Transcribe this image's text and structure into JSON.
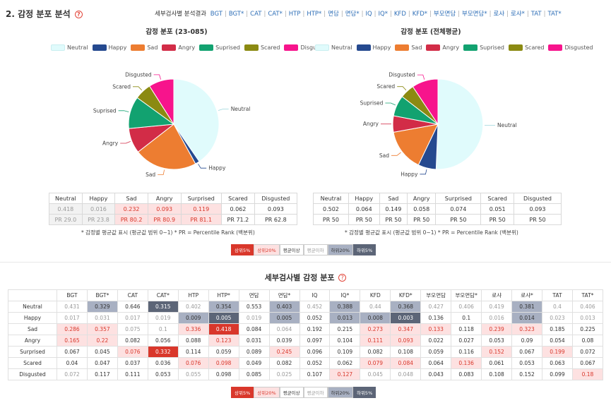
{
  "header": {
    "section_title": "2. 감정 분포 분석",
    "help_glyph": "?",
    "nav_lead": "세부검사별 분석결과",
    "nav_links": [
      "BGT",
      "BGT*",
      "CAT",
      "CAT*",
      "HTP",
      "HTP*",
      "면담",
      "면담*",
      "IQ",
      "IQ*",
      "KFD",
      "KFD*",
      "부모면담",
      "부모면담*",
      "로샤",
      "로샤*",
      "TAT",
      "TAT*"
    ]
  },
  "colors": {
    "Neutral": "#e0fbfc",
    "Happy": "#25498f",
    "Sad": "#ed7d31",
    "Angry": "#d22c47",
    "Suprised": "#12a270",
    "Scared": "#8b8a12",
    "Disgusted": "#f7148c"
  },
  "legend_items": [
    "Neutral",
    "Happy",
    "Sad",
    "Angry",
    "Suprised",
    "Scared",
    "Disgusted"
  ],
  "chart_data": [
    {
      "type": "pie",
      "title": "감정 분포 (23-085)",
      "categories": [
        "Neutral",
        "Happy",
        "Sad",
        "Angry",
        "Suprised",
        "Scared",
        "Disgusted"
      ],
      "values": [
        0.418,
        0.016,
        0.232,
        0.093,
        0.119,
        0.062,
        0.093
      ],
      "legend": "top"
    },
    {
      "type": "pie",
      "title": "감정 분포 (전체평균)",
      "categories": [
        "Neutral",
        "Happy",
        "Sad",
        "Angry",
        "Suprised",
        "Scared",
        "Disgusted"
      ],
      "values": [
        0.502,
        0.064,
        0.149,
        0.058,
        0.074,
        0.051,
        0.093
      ],
      "legend": "top"
    }
  ],
  "left_table": {
    "headers": [
      "Neutral",
      "Happy",
      "Sad",
      "Angry",
      "Surprised",
      "Scared",
      "Disgusted"
    ],
    "values": [
      "0.418",
      "0.016",
      "0.232",
      "0.093",
      "0.119",
      "0.062",
      "0.093"
    ],
    "pr": [
      "PR 29.0",
      "PR 23.8",
      "PR 80.2",
      "PR 80.9",
      "PR 81.1",
      "PR 71.2",
      "PR 62.8"
    ],
    "levels": [
      "low",
      "low",
      "top20",
      "top20",
      "top20",
      "avg",
      "avg"
    ]
  },
  "right_table": {
    "headers": [
      "Neutral",
      "Happy",
      "Sad",
      "Angry",
      "Surprised",
      "Scared",
      "Disgusted"
    ],
    "values": [
      "0.502",
      "0.064",
      "0.149",
      "0.058",
      "0.074",
      "0.051",
      "0.093"
    ],
    "pr": [
      "PR 50",
      "PR 50",
      "PR 50",
      "PR 50",
      "PR 50",
      "PR 50",
      "PR 50"
    ]
  },
  "notes": {
    "left": "* 감정별 평균값 표시 (평균값 범위 0~1)    * PR = Percentile Rank (백분위)",
    "right": "* 감정별 평균값 표시 (평균값 범위 0~1)    * PR = Percentile Rank (백분위)"
  },
  "badges": [
    {
      "label": "상위5%",
      "key": "top5"
    },
    {
      "label": "상위20%",
      "key": "top20"
    },
    {
      "label": "평균이상",
      "key": "above"
    },
    {
      "label": "평균이하",
      "key": "below"
    },
    {
      "label": "하위20%",
      "key": "bot20"
    },
    {
      "label": "하위5%",
      "key": "bot5"
    }
  ],
  "level_styles": {
    "top5": {
      "bg": "#d9372b",
      "fg": "#ffffff"
    },
    "top20": {
      "bg": "#fde1e1",
      "fg": "#d9372b"
    },
    "above": {
      "bg": "#ffffff",
      "fg": "#333333"
    },
    "avg": {
      "bg": "#ffffff",
      "fg": "#333333"
    },
    "below": {
      "bg": "#ffffff",
      "fg": "#9a9a9a"
    },
    "low": {
      "bg": "#f2f2f2",
      "fg": "#9a9a9a"
    },
    "bot20": {
      "bg": "#a8b0c2",
      "fg": "#333333"
    },
    "bot5": {
      "bg": "#5c6577",
      "fg": "#ffffff"
    }
  },
  "bottom": {
    "title": "세부검사별 감정 분포",
    "columns": [
      "BGT",
      "BGT*",
      "CAT",
      "CAT*",
      "HTP",
      "HTP*",
      "면담",
      "면담*",
      "IQ",
      "IQ*",
      "KFD",
      "KFD*",
      "부모면담",
      "부모면담*",
      "로샤",
      "로샤*",
      "TAT",
      "TAT*"
    ],
    "rows": [
      {
        "label": "Neutral",
        "values": [
          "0.431",
          "0.329",
          "0.646",
          "0.315",
          "0.402",
          "0.354",
          "0.553",
          "0.403",
          "0.452",
          "0.388",
          "0.44",
          "0.368",
          "0.427",
          "0.406",
          "0.419",
          "0.381",
          "0.4",
          "0.406"
        ],
        "levels": [
          "below",
          "bot20",
          "above",
          "bot5",
          "below",
          "bot20",
          "above",
          "bot20",
          "below",
          "bot20",
          "below",
          "bot20",
          "below",
          "below",
          "below",
          "bot20",
          "below",
          "below"
        ]
      },
      {
        "label": "Happy",
        "values": [
          "0.017",
          "0.031",
          "0.017",
          "0.019",
          "0.009",
          "0.005",
          "0.019",
          "0.005",
          "0.052",
          "0.013",
          "0.008",
          "0.003",
          "0.136",
          "0.1",
          "0.016",
          "0.014",
          "0.023",
          "0.013"
        ],
        "levels": [
          "below",
          "below",
          "below",
          "below",
          "bot20",
          "bot5",
          "below",
          "bot20",
          "above",
          "bot20",
          "bot20",
          "bot5",
          "above",
          "above",
          "below",
          "bot20",
          "below",
          "below"
        ]
      },
      {
        "label": "Sad",
        "values": [
          "0.286",
          "0.357",
          "0.075",
          "0.1",
          "0.336",
          "0.418",
          "0.084",
          "0.064",
          "0.192",
          "0.215",
          "0.273",
          "0.347",
          "0.133",
          "0.118",
          "0.239",
          "0.323",
          "0.185",
          "0.225"
        ],
        "levels": [
          "top20",
          "top20",
          "below",
          "below",
          "top20",
          "top5",
          "above",
          "below",
          "above",
          "above",
          "top20",
          "top20",
          "top20",
          "above",
          "top20",
          "top20",
          "above",
          "above"
        ]
      },
      {
        "label": "Angry",
        "values": [
          "0.165",
          "0.22",
          "0.082",
          "0.056",
          "0.088",
          "0.123",
          "0.031",
          "0.039",
          "0.097",
          "0.104",
          "0.111",
          "0.093",
          "0.022",
          "0.027",
          "0.053",
          "0.09",
          "0.054",
          "0.08"
        ],
        "levels": [
          "top20",
          "top20",
          "above",
          "above",
          "above",
          "top20",
          "above",
          "above",
          "above",
          "above",
          "top20",
          "top20",
          "above",
          "above",
          "above",
          "above",
          "above",
          "above"
        ]
      },
      {
        "label": "Surprised",
        "values": [
          "0.067",
          "0.045",
          "0.076",
          "0.332",
          "0.114",
          "0.059",
          "0.089",
          "0.245",
          "0.096",
          "0.109",
          "0.082",
          "0.108",
          "0.059",
          "0.116",
          "0.152",
          "0.067",
          "0.199",
          "0.072"
        ],
        "levels": [
          "above",
          "above",
          "top20",
          "top5",
          "above",
          "above",
          "above",
          "top20",
          "above",
          "above",
          "above",
          "above",
          "above",
          "above",
          "top20",
          "above",
          "top20",
          "above"
        ]
      },
      {
        "label": "Scared",
        "values": [
          "0.04",
          "0.047",
          "0.037",
          "0.036",
          "0.076",
          "0.098",
          "0.049",
          "0.082",
          "0.052",
          "0.062",
          "0.079",
          "0.084",
          "0.064",
          "0.136",
          "0.061",
          "0.053",
          "0.063",
          "0.067"
        ],
        "levels": [
          "above",
          "above",
          "above",
          "above",
          "top20",
          "top20",
          "above",
          "above",
          "above",
          "above",
          "top20",
          "top20",
          "above",
          "top20",
          "above",
          "above",
          "above",
          "above"
        ]
      },
      {
        "label": "Disgusted",
        "values": [
          "0.072",
          "0.117",
          "0.111",
          "0.053",
          "0.055",
          "0.098",
          "0.085",
          "0.025",
          "0.107",
          "0.127",
          "0.045",
          "0.048",
          "0.043",
          "0.083",
          "0.108",
          "0.152",
          "0.099",
          "0.18"
        ],
        "levels": [
          "below",
          "above",
          "above",
          "above",
          "below",
          "above",
          "above",
          "below",
          "above",
          "top20",
          "below",
          "below",
          "above",
          "above",
          "above",
          "above",
          "above",
          "top20"
        ]
      }
    ]
  }
}
